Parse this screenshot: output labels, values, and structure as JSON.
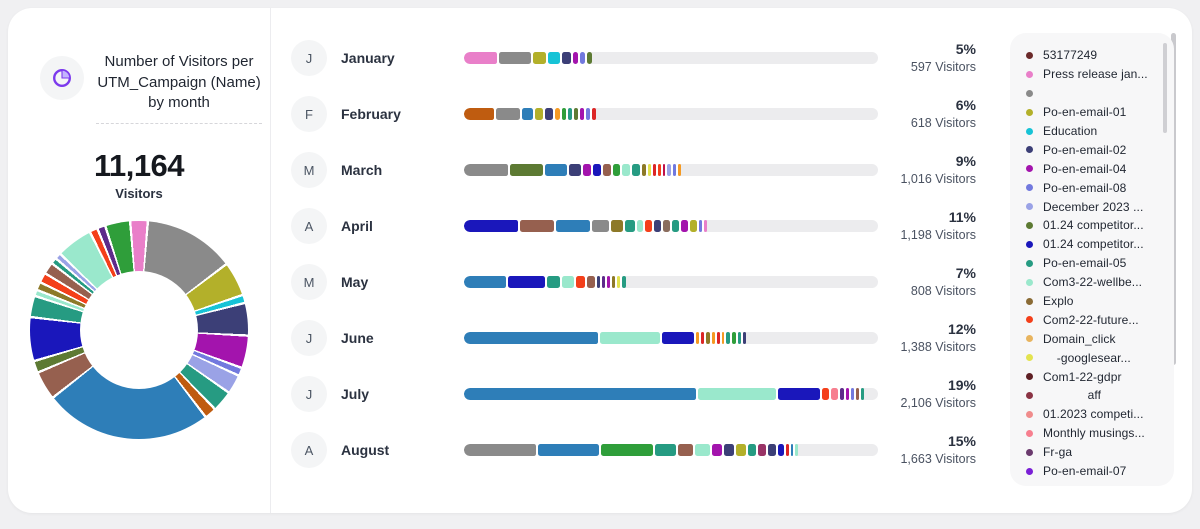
{
  "header": {
    "title": "Number of Visitors per UTM_Campaign (Name) by month",
    "total": "11,164",
    "total_label": "Visitors"
  },
  "palette": {
    "pink": "#e97fc9",
    "gray": "#8a8a8a",
    "olive": "#b3b02a",
    "cyan": "#17c3d6",
    "slate": "#3c3f77",
    "magenta": "#a314ad",
    "violet": "#7279de",
    "lavender": "#9aa2e6",
    "olivegreen": "#5d7a33",
    "blue": "#2e7eb8",
    "darkblue": "#1a17bb",
    "teal": "#269b82",
    "mint": "#9ae8cc",
    "brown": "#96604f",
    "rust": "#bf5c10",
    "orange": "#f59a23",
    "red": "#dc2626",
    "orangered": "#f43f1a",
    "green": "#2f9e3a",
    "yellow": "#e3e34f",
    "tan": "#e8b45f",
    "maroon": "#6b2a2a",
    "plum": "#993366",
    "darkpurple": "#5e2b8a",
    "purple": "#7a1fd6",
    "salmon": "#f77f8f",
    "lightsalmon": "#f08c8c",
    "darkmaroon": "#5e1f24",
    "winered": "#8a3344",
    "frga": "#6b3a6e",
    "taupe": "#8a6d5e",
    "darkolive": "#8d7928",
    "explo": "#8a6b35",
    "crimson": "#c01048"
  },
  "months": [
    {
      "letter": "J",
      "name": "January",
      "percent": "5%",
      "visitors": "597 Visitors",
      "segments": [
        [
          "pink",
          33
        ],
        [
          "gray",
          32
        ],
        [
          "olive",
          13
        ],
        [
          "cyan",
          12
        ],
        [
          "slate",
          9
        ],
        [
          "magenta",
          5
        ],
        [
          "violet",
          5
        ],
        [
          "olivegreen",
          5
        ]
      ]
    },
    {
      "letter": "F",
      "name": "February",
      "percent": "6%",
      "visitors": "618 Visitors",
      "segments": [
        [
          "rust",
          30
        ],
        [
          "gray",
          24
        ],
        [
          "blue",
          11
        ],
        [
          "olive",
          8
        ],
        [
          "slate",
          8
        ],
        [
          "orange",
          5
        ],
        [
          "green",
          4
        ],
        [
          "teal",
          4
        ],
        [
          "olivegreen",
          4
        ],
        [
          "magenta",
          4
        ],
        [
          "violet",
          4
        ],
        [
          "red",
          4
        ]
      ]
    },
    {
      "letter": "M",
      "name": "March",
      "percent": "9%",
      "visitors": "1,016 Visitors",
      "segments": [
        [
          "gray",
          44
        ],
        [
          "olivegreen",
          33
        ],
        [
          "blue",
          22
        ],
        [
          "slate",
          12
        ],
        [
          "magenta",
          8
        ],
        [
          "darkblue",
          8
        ],
        [
          "brown",
          8
        ],
        [
          "green",
          7
        ],
        [
          "mint",
          8
        ],
        [
          "teal",
          8
        ],
        [
          "darkolive",
          4
        ],
        [
          "yellow",
          3
        ],
        [
          "red",
          3
        ],
        [
          "orangered",
          3
        ],
        [
          "crimson",
          2
        ],
        [
          "lavender",
          4
        ],
        [
          "violet",
          3
        ],
        [
          "orange",
          3
        ]
      ]
    },
    {
      "letter": "A",
      "name": "April",
      "percent": "11%",
      "visitors": "1,198 Visitors",
      "segments": [
        [
          "darkblue",
          54
        ],
        [
          "brown",
          34
        ],
        [
          "blue",
          34
        ],
        [
          "gray",
          17
        ],
        [
          "darkolive",
          12
        ],
        [
          "teal",
          10
        ],
        [
          "mint",
          6
        ],
        [
          "orangered",
          7
        ],
        [
          "slate",
          7
        ],
        [
          "taupe",
          7
        ],
        [
          "teal",
          7
        ],
        [
          "magenta",
          7
        ],
        [
          "olive",
          7
        ],
        [
          "violet",
          3
        ],
        [
          "pink",
          3
        ]
      ]
    },
    {
      "letter": "M",
      "name": "May",
      "percent": "7%",
      "visitors": "808 Visitors",
      "segments": [
        [
          "blue",
          42
        ],
        [
          "darkblue",
          37
        ],
        [
          "teal",
          13
        ],
        [
          "mint",
          12
        ],
        [
          "orangered",
          9
        ],
        [
          "brown",
          8
        ],
        [
          "slate",
          3
        ],
        [
          "darkpurple",
          3
        ],
        [
          "magenta",
          3
        ],
        [
          "darkolive",
          3
        ],
        [
          "yellow",
          3
        ],
        [
          "teal",
          4
        ]
      ]
    },
    {
      "letter": "J",
      "name": "June",
      "percent": "12%",
      "visitors": "1,388 Visitors",
      "segments": [
        [
          "blue",
          134
        ],
        [
          "mint",
          60
        ],
        [
          "darkblue",
          32
        ],
        [
          "orange",
          3
        ],
        [
          "red",
          3
        ],
        [
          "darkolive",
          4
        ],
        [
          "orange",
          3
        ],
        [
          "red",
          3
        ],
        [
          "orange",
          2
        ],
        [
          "teal",
          4
        ],
        [
          "green",
          4
        ],
        [
          "teal",
          3
        ],
        [
          "slate",
          3
        ]
      ]
    },
    {
      "letter": "J",
      "name": "July",
      "percent": "19%",
      "visitors": "2,106 Visitors",
      "segments": [
        [
          "blue",
          232
        ],
        [
          "mint",
          78
        ],
        [
          "darkblue",
          42
        ],
        [
          "orangered",
          7
        ],
        [
          "salmon",
          7
        ],
        [
          "darkpurple",
          4
        ],
        [
          "magenta",
          3
        ],
        [
          "violet",
          3
        ],
        [
          "brown",
          3
        ],
        [
          "teal",
          3
        ]
      ]
    },
    {
      "letter": "A",
      "name": "August",
      "percent": "15%",
      "visitors": "1,663 Visitors",
      "segments": [
        [
          "gray",
          72
        ],
        [
          "blue",
          61
        ],
        [
          "green",
          52
        ],
        [
          "teal",
          21
        ],
        [
          "brown",
          15
        ],
        [
          "mint",
          15
        ],
        [
          "magenta",
          10
        ],
        [
          "slate",
          10
        ],
        [
          "olive",
          10
        ],
        [
          "teal",
          8
        ],
        [
          "plum",
          8
        ],
        [
          "slate",
          8
        ],
        [
          "darkblue",
          6
        ],
        [
          "red",
          3
        ],
        [
          "blue",
          2
        ],
        [
          "mint",
          3
        ]
      ]
    }
  ],
  "legend": {
    "items": [
      {
        "label": "53177249",
        "color": "maroon"
      },
      {
        "label": "Press release jan...",
        "color": "pink"
      },
      {
        "label": "",
        "color": "gray"
      },
      {
        "label": "Po-en-email-01",
        "color": "olive"
      },
      {
        "label": "Education",
        "color": "cyan"
      },
      {
        "label": "Po-en-email-02",
        "color": "slate"
      },
      {
        "label": "Po-en-email-04",
        "color": "magenta"
      },
      {
        "label": "Po-en-email-08",
        "color": "violet"
      },
      {
        "label": "December 2023 ...",
        "color": "lavender"
      },
      {
        "label": "01.24 competitor...",
        "color": "olivegreen"
      },
      {
        "label": "01.24 competitor...",
        "color": "darkblue"
      },
      {
        "label": "Po-en-email-05",
        "color": "teal"
      },
      {
        "label": "Com3-22-wellbe...",
        "color": "mint"
      },
      {
        "label": "Explo",
        "color": "explo"
      },
      {
        "label": "Com2-22-future...",
        "color": "orangered"
      },
      {
        "label": "Domain_click",
        "color": "tan"
      },
      {
        "label": "    -googlesear...",
        "color": "yellow"
      },
      {
        "label": "Com1-22-gdpr",
        "color": "darkmaroon"
      },
      {
        "label": "             aff",
        "color": "winered"
      },
      {
        "label": "01.2023 competi...",
        "color": "lightsalmon"
      },
      {
        "label": "Monthly musings...",
        "color": "salmon"
      },
      {
        "label": "Fr-ga",
        "color": "frga"
      },
      {
        "label": "Po-en-email-07",
        "color": "purple"
      }
    ]
  },
  "donut": {
    "segments": [
      [
        "pink",
        8
      ],
      [
        "gray",
        47
      ],
      [
        "olive",
        17
      ],
      [
        "cyan",
        3
      ],
      [
        "slate",
        16
      ],
      [
        "magenta",
        16
      ],
      [
        "violet",
        3
      ],
      [
        "lavender",
        9
      ],
      [
        "teal",
        10
      ],
      [
        "rust",
        5
      ],
      [
        "blue",
        88
      ],
      [
        "brown",
        14
      ],
      [
        "olivegreen",
        5
      ],
      [
        "darkblue",
        22
      ],
      [
        "teal",
        10
      ],
      [
        "mint",
        2
      ],
      [
        "darkolive",
        3
      ],
      [
        "orangered",
        4
      ],
      [
        "brown",
        5
      ],
      [
        "teal",
        2
      ],
      [
        "lavender",
        2
      ],
      [
        "mint",
        18
      ],
      [
        "orangered",
        3
      ],
      [
        "darkpurple",
        3
      ],
      [
        "green",
        12
      ]
    ]
  },
  "chart_data": {
    "type": "bar",
    "title": "Number of Visitors per UTM_Campaign (Name) by month",
    "total_visitors": 11164,
    "categories": [
      "January",
      "February",
      "March",
      "April",
      "May",
      "June",
      "July",
      "August"
    ],
    "series": [
      {
        "name": "Share of visitors (%)",
        "values": [
          5,
          6,
          9,
          11,
          7,
          12,
          19,
          15
        ]
      },
      {
        "name": "Visitors",
        "values": [
          597,
          618,
          1016,
          1198,
          808,
          1388,
          2106,
          1663
        ]
      }
    ],
    "legend_entries": [
      "53177249",
      "Press release jan...",
      "",
      "Po-en-email-01",
      "Education",
      "Po-en-email-02",
      "Po-en-email-04",
      "Po-en-email-08",
      "December 2023 ...",
      "01.24 competitor...",
      "01.24 competitor...",
      "Po-en-email-05",
      "Com3-22-wellbe...",
      "Explo",
      "Com2-22-future...",
      "Domain_click",
      "-googlesear...",
      "Com1-22-gdpr",
      "aff",
      "01.2023 competi...",
      "Monthly musings...",
      "Fr-ga",
      "Po-en-email-07"
    ],
    "layout": "horizontal stacked bars per month segmented by UTM campaign, companion donut chart of overall campaign share, legend on right"
  }
}
